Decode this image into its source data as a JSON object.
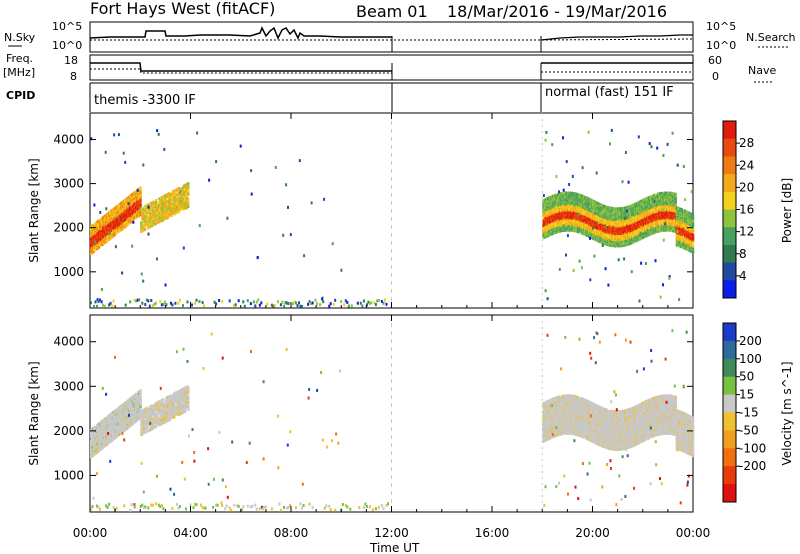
{
  "header": {
    "site": "Fort Hays West (fitACF)",
    "beam": "Beam 01",
    "date_range": "18/Mar/2016 - 19/Mar/2016"
  },
  "panels": {
    "nsky": {
      "label": "N.Sky",
      "left_ticks": [
        "10^5",
        "10^0"
      ],
      "right_ticks": [
        "10^5",
        "10^0"
      ],
      "right_label": "N.Search"
    },
    "freq": {
      "label_top": "Freq.",
      "label_unit": "[MHz]",
      "left_ticks": [
        "18",
        "8"
      ],
      "right_ticks": [
        "60",
        "0"
      ],
      "right_label": "Nave"
    },
    "cpid": {
      "label": "CPID",
      "segments": [
        {
          "text": "themis -3300 IF"
        },
        {
          "text": "normal (fast) 151 IF"
        }
      ]
    }
  },
  "chart_data": [
    {
      "type": "heatmap",
      "name": "power",
      "ylabel": "Slant Range [km]",
      "xlabel": "Time UT",
      "x_ticks": [
        "00:00",
        "04:00",
        "08:00",
        "12:00",
        "16:00",
        "20:00",
        "00:00"
      ],
      "y_ticks": [
        "1000",
        "2000",
        "3000",
        "4000"
      ],
      "ylim": [
        180,
        4600
      ],
      "xlim_hours": [
        0,
        24
      ],
      "data_gap_hours": [
        12,
        18
      ],
      "colorbar": {
        "label": "Power [dB]",
        "ticks": [
          "4",
          "8",
          "12",
          "16",
          "20",
          "24",
          "28"
        ],
        "colors": [
          "#0b1ee8",
          "#1f4aa0",
          "#2f7a50",
          "#4aa060",
          "#8ec43c",
          "#f2d21c",
          "#f4a81c",
          "#f07a14",
          "#ea4a10",
          "#e01c0c"
        ]
      }
    },
    {
      "type": "heatmap",
      "name": "velocity",
      "ylabel": "Slant Range [km]",
      "xlabel": "Time UT",
      "x_ticks": [
        "00:00",
        "04:00",
        "08:00",
        "12:00",
        "16:00",
        "20:00",
        "00:00"
      ],
      "y_ticks": [
        "1000",
        "2000",
        "3000",
        "4000"
      ],
      "ylim": [
        180,
        4600
      ],
      "xlim_hours": [
        0,
        24
      ],
      "data_gap_hours": [
        12,
        18
      ],
      "colorbar": {
        "label": "Velocity [m s^-1]",
        "ticks": [
          "200",
          "100",
          "50",
          "15",
          "-15",
          "-50",
          "-100",
          "-200"
        ],
        "colors": [
          "#1a3cc8",
          "#2f6a9a",
          "#3f8a5a",
          "#78c040",
          "#c8c8c8",
          "#f0c030",
          "#f0a020",
          "#f07010",
          "#ea3a0c",
          "#e01010"
        ]
      }
    }
  ],
  "x_axis_title": "Time UT"
}
